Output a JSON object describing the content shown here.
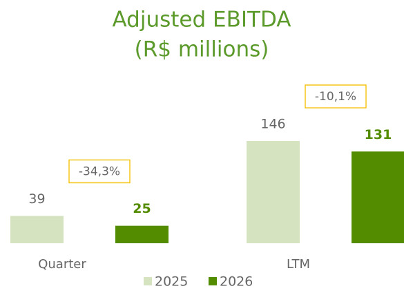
{
  "chart_data": {
    "type": "bar",
    "title": [
      "Adjusted EBITDA",
      "(R$ millions)"
    ],
    "categories": [
      "Quarter",
      "LTM"
    ],
    "series": [
      {
        "name": "2025",
        "color": "#d5e3c0",
        "values": [
          39,
          146
        ]
      },
      {
        "name": "2026",
        "color": "#548c00",
        "values": [
          25,
          131
        ]
      }
    ],
    "annotations": [
      "-34,3%",
      "-10,1%"
    ],
    "annotation_color": "#f5c518",
    "ylim": [
      0,
      150
    ],
    "legend": "bottom"
  }
}
